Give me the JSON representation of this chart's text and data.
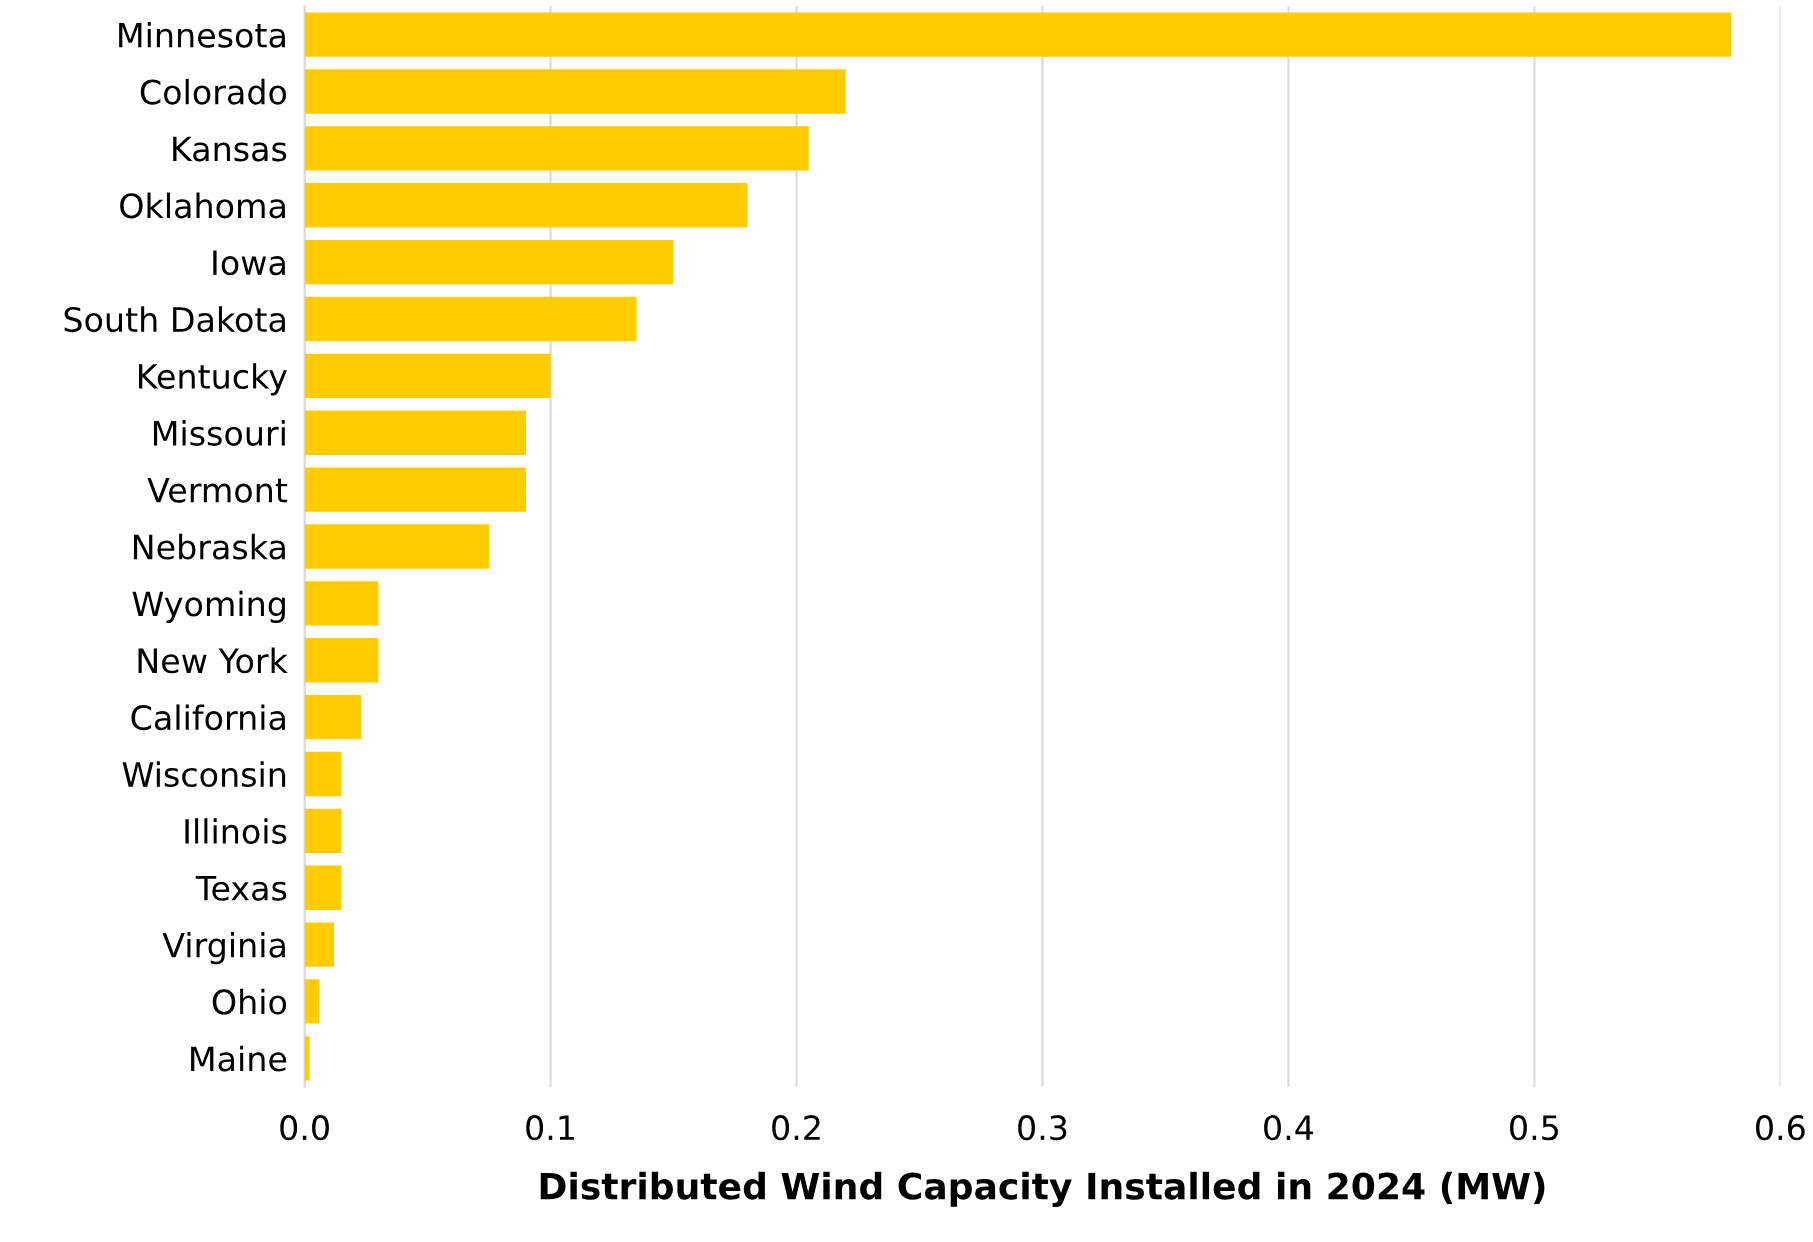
{
  "chart_data": {
    "type": "bar",
    "orientation": "horizontal",
    "xlabel": "Distributed Wind Capacity Installed in 2024 (MW)",
    "categories": [
      "Minnesota",
      "Colorado",
      "Kansas",
      "Oklahoma",
      "Iowa",
      "South Dakota",
      "Kentucky",
      "Missouri",
      "Vermont",
      "Nebraska",
      "Wyoming",
      "New York",
      "California",
      "Wisconsin",
      "Illinois",
      "Texas",
      "Virginia",
      "Ohio",
      "Maine"
    ],
    "values": [
      0.58,
      0.22,
      0.205,
      0.18,
      0.15,
      0.135,
      0.1,
      0.09,
      0.09,
      0.075,
      0.03,
      0.03,
      0.023,
      0.015,
      0.015,
      0.015,
      0.012,
      0.006,
      0.002
    ],
    "color": "#ffcc00",
    "xlim": [
      0,
      0.6
    ],
    "xticks": [
      {
        "value": 0,
        "label": "0.0"
      },
      0.1,
      0.2,
      0.3,
      0.4,
      0.5,
      0.6
    ],
    "grid": "x",
    "legend": false
  }
}
